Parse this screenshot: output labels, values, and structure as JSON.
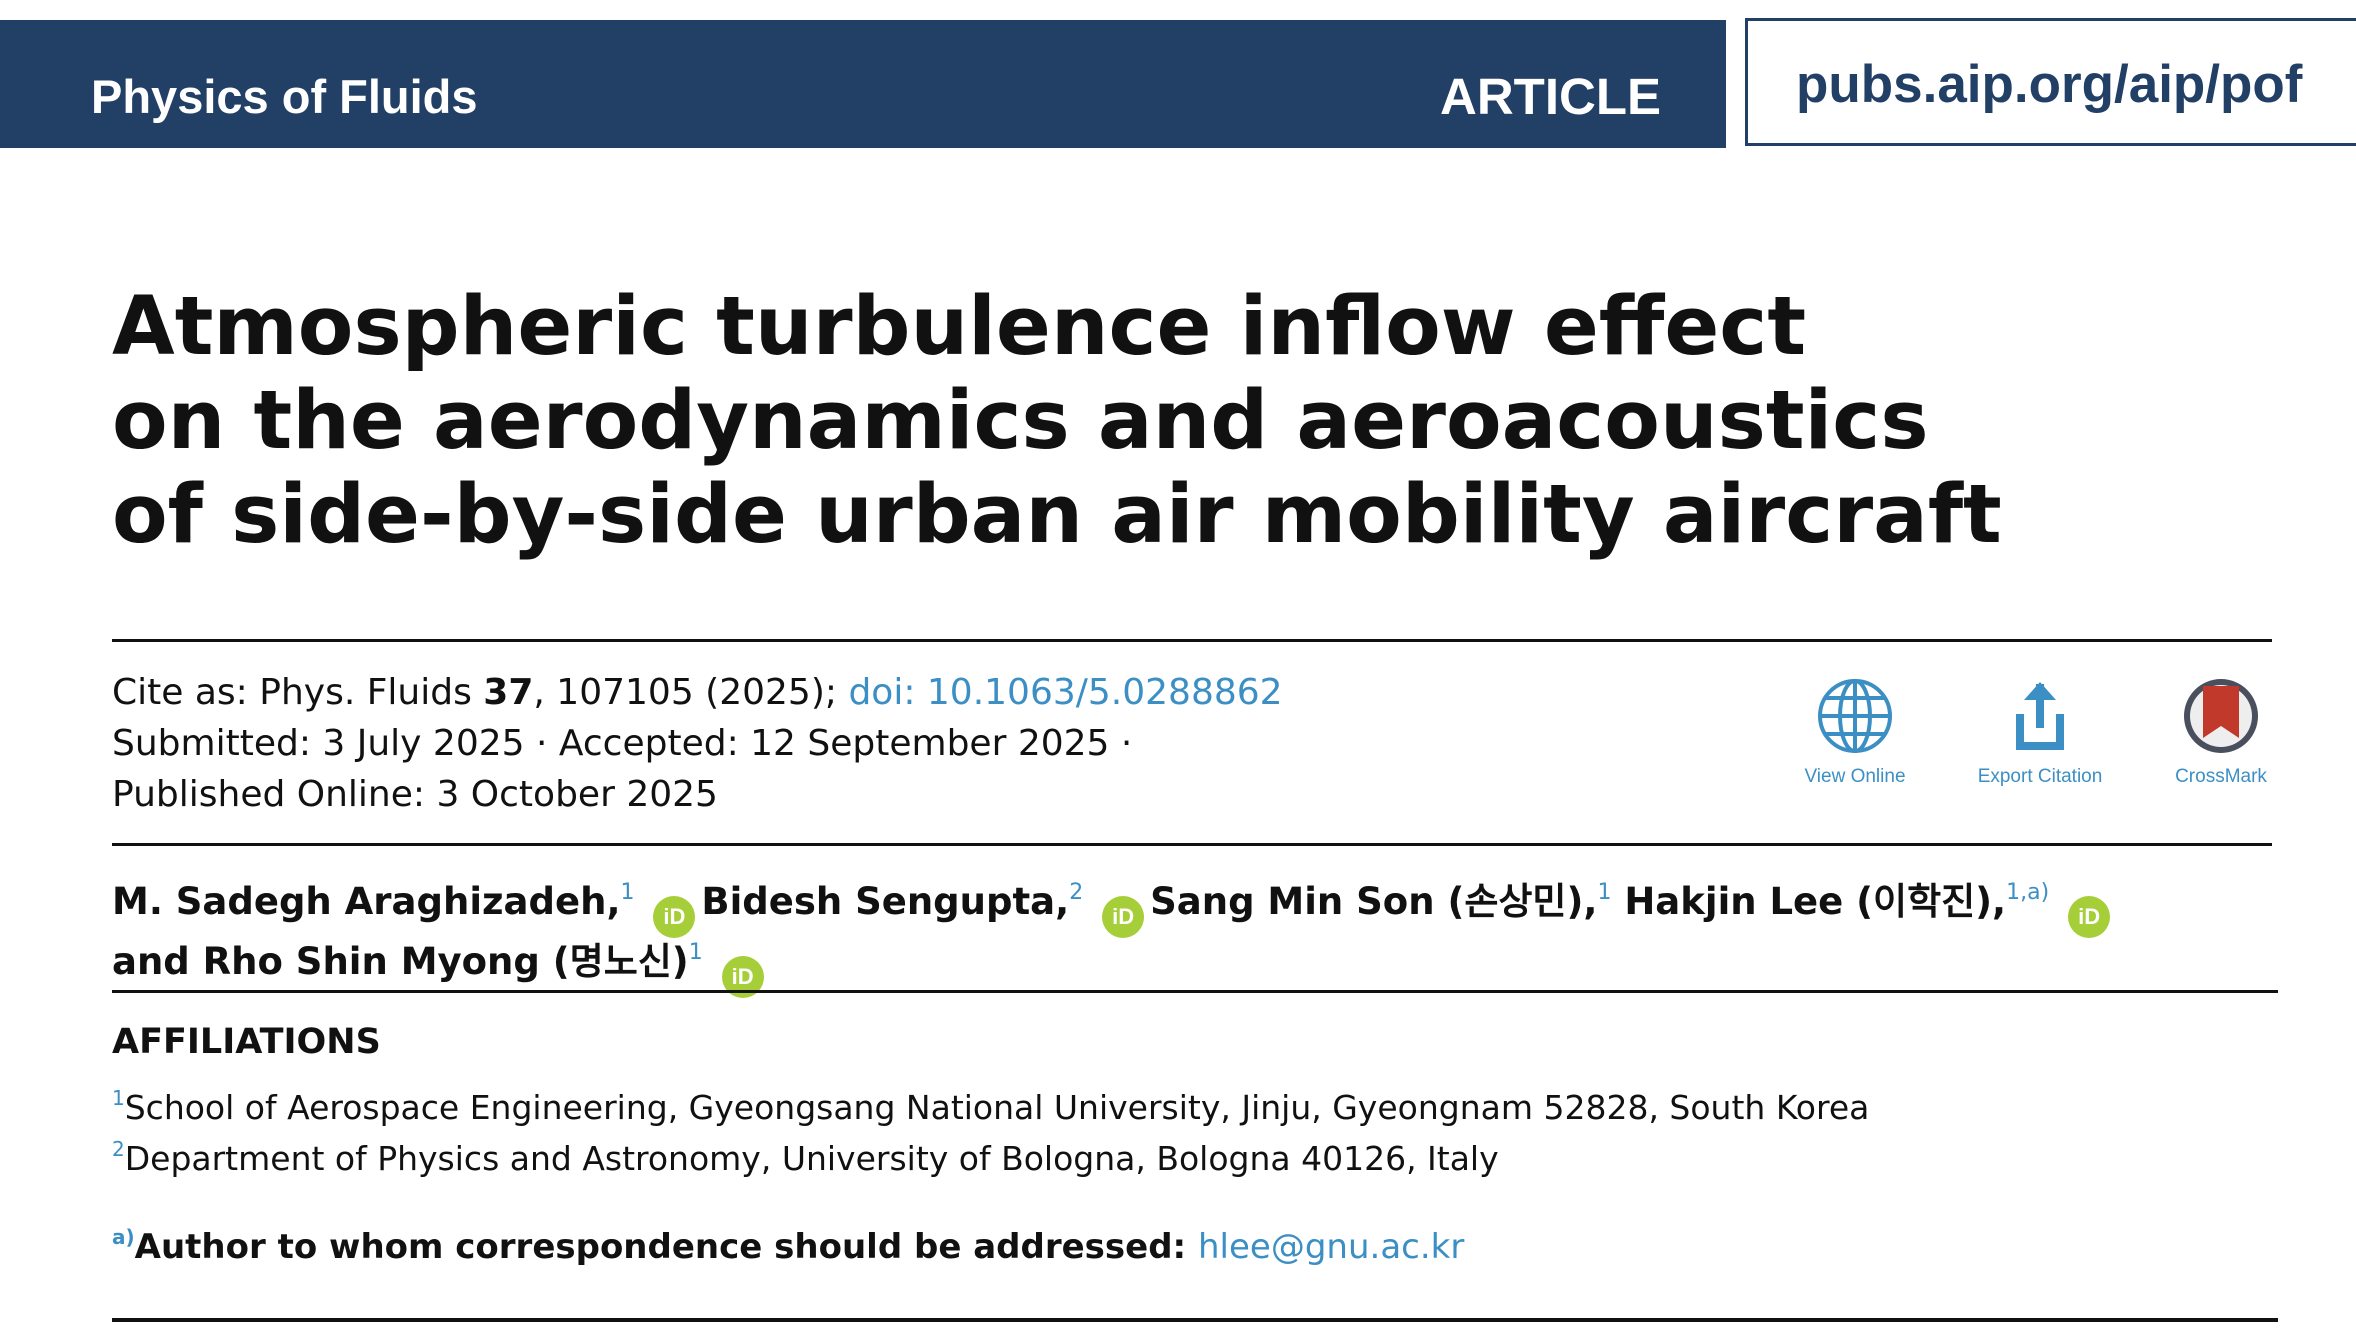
{
  "header": {
    "journal": "Physics of Fluids",
    "article_type": "ARTICLE",
    "url": "pubs.aip.org/aip/pof"
  },
  "title": {
    "lines": [
      "Atmospheric turbulence inflow effect",
      "on the aerodynamics and aeroacoustics",
      "of side-by-side urban air mobility aircraft"
    ]
  },
  "citation": {
    "prefix": "Cite as: Phys. Fluids ",
    "volume": "37",
    "rest": ", 107105 (2025); ",
    "doi": "doi: 10.1063/5.0288862",
    "submitted": "Submitted: 3 July 2025 · Accepted: 12 September 2025 ·",
    "published": "Published Online: 3 October 2025"
  },
  "actions": {
    "view_online": "View Online",
    "export_citation": "Export Citation",
    "crossmark": "CrossMark"
  },
  "orcid_label": "iD",
  "authors": {
    "a1_name": "M. Sadegh Araghizadeh,",
    "a1_sup": "1",
    "a2_name": "Bidesh Sengupta,",
    "a2_sup": "2",
    "a3_name": "Sang Min Son (손상민),",
    "a3_sup": "1",
    "a4_name": "Hakjin Lee (이학진),",
    "a4_sup": "1,a)",
    "a5_name": "and Rho Shin Myong (명노신)",
    "a5_sup": "1"
  },
  "affiliations": {
    "heading": "AFFILIATIONS",
    "items": [
      {
        "marker": "1",
        "text": "School of Aerospace Engineering, Gyeongsang National University, Jinju, Gyeongnam 52828, South Korea"
      },
      {
        "marker": "2",
        "text": "Department of Physics and Astronomy, University of Bologna, Bologna 40126, Italy"
      }
    ]
  },
  "correspondence": {
    "marker": "a)",
    "text": "Author to whom correspondence should be addressed: ",
    "email": "hlee@gnu.ac.kr"
  },
  "colors": {
    "header_bg": "#223f66",
    "link": "#3c8fc4",
    "orcid": "#a6ce39",
    "crossmark_red": "#c0392b"
  }
}
